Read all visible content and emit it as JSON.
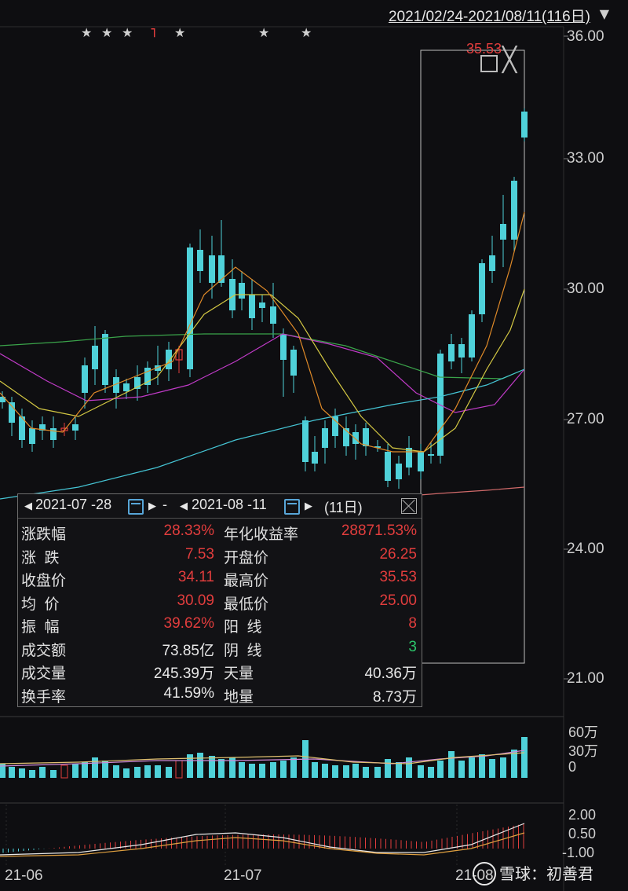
{
  "header": {
    "date_range": "2021/02/24-2021/08/11(116日)",
    "dropdown_icon": "triangle-down-icon"
  },
  "price_axis": [
    "36.00",
    "33.00",
    "30.00",
    "27.00",
    "24.00",
    "21.00"
  ],
  "volume_axis": [
    "60万",
    "30万",
    "0"
  ],
  "macd_axis": [
    "2.00",
    "0.50",
    "-1.00"
  ],
  "date_ticks": [
    "21-06",
    "21-07",
    "21-08"
  ],
  "max_marker": "35.53",
  "stars": [
    "★",
    "★",
    "★",
    "★",
    "★",
    "★"
  ],
  "panel": {
    "start_date": "2021-07 -28",
    "separator": "-",
    "end_date": "2021-08 -11",
    "days": "(11日)",
    "rows": [
      {
        "l1": "涨跌幅",
        "v1": "28.33%",
        "l2": "年化收益率",
        "v2": "28871.53%"
      },
      {
        "l1": "涨  跌",
        "v1": "7.53",
        "l2": "开盘价",
        "v2": "26.25"
      },
      {
        "l1": "收盘价",
        "v1": "34.11",
        "l2": "最高价",
        "v2": "35.53"
      },
      {
        "l1": "均  价",
        "v1": "30.09",
        "l2": "最低价",
        "v2": "25.00"
      },
      {
        "l1": "振  幅",
        "v1": "39.62%",
        "l2": "阳  线",
        "v2": "8"
      },
      {
        "l1": "成交额",
        "v1": "73.85亿",
        "l2": "阴  线",
        "v2": "3"
      },
      {
        "l1": "成交量",
        "v1": "245.39万",
        "l2": "天量",
        "v2": "40.36万"
      },
      {
        "l1": "换手率",
        "v1": "41.59%",
        "l2": "地量",
        "v2": "8.73万"
      }
    ]
  },
  "watermark": "雪球：初善君",
  "colors": {
    "up": "#e23d3d",
    "down": "#4fd1d9",
    "bg": "#0e0e11"
  }
}
